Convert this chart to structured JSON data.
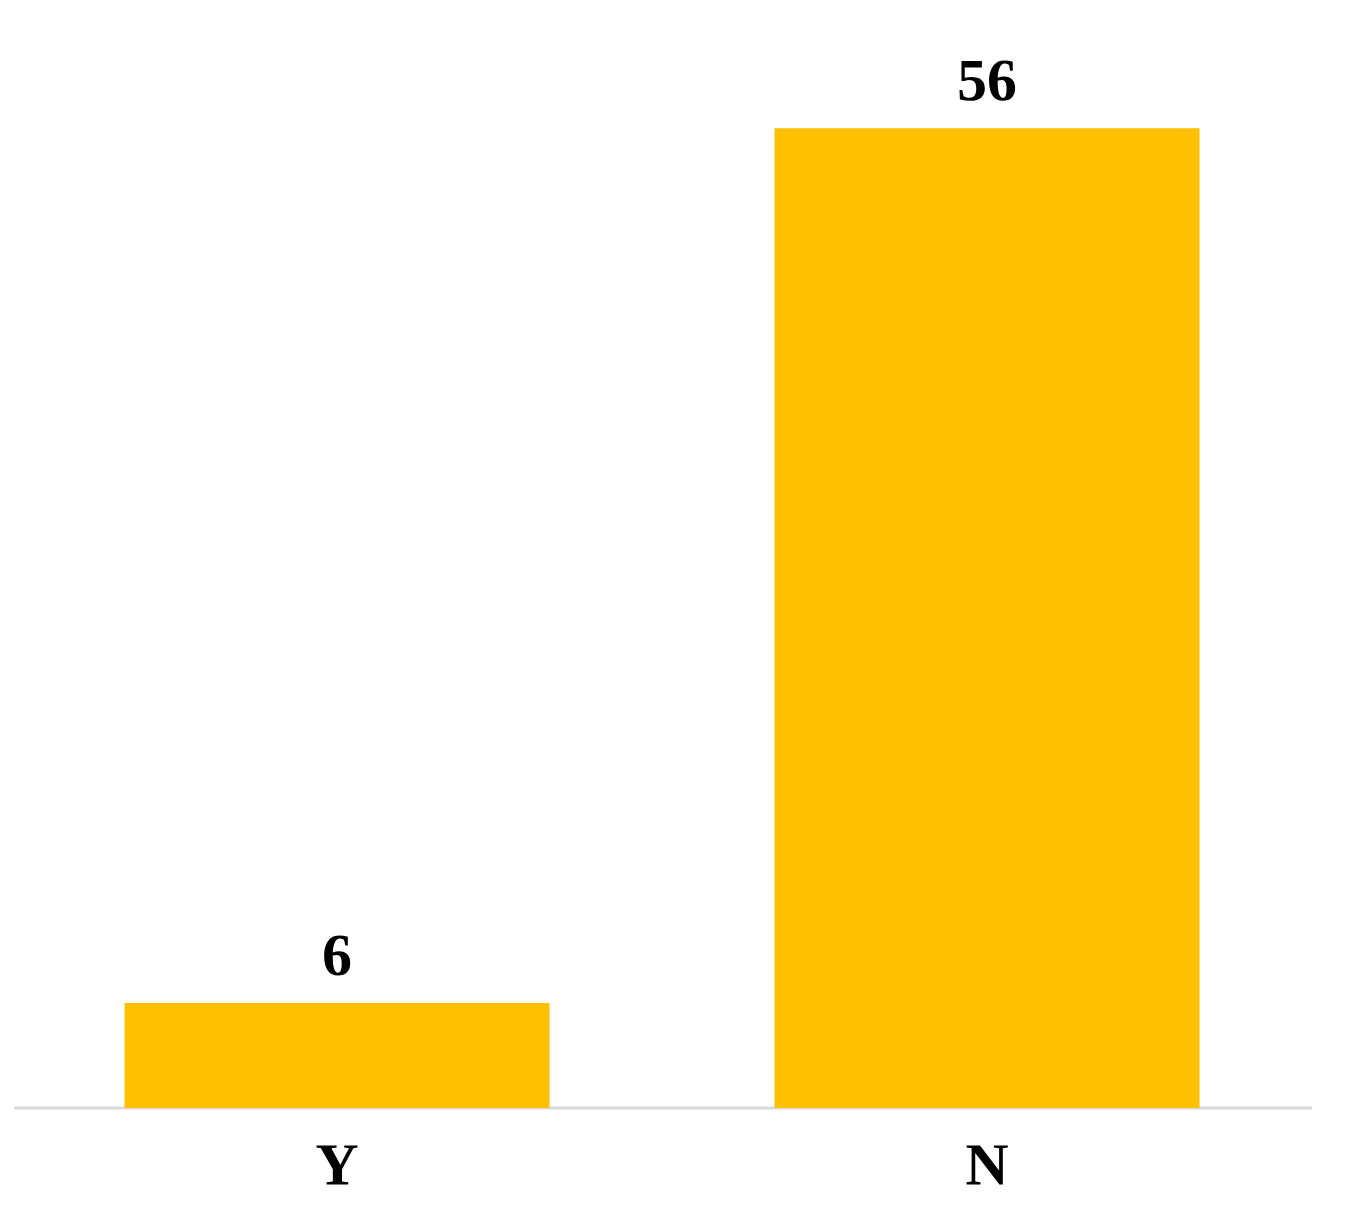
{
  "chart_data": {
    "type": "bar",
    "categories": [
      "Y",
      "N"
    ],
    "values": [
      6,
      56
    ],
    "color": "#ffc000",
    "data_labels": true
  }
}
